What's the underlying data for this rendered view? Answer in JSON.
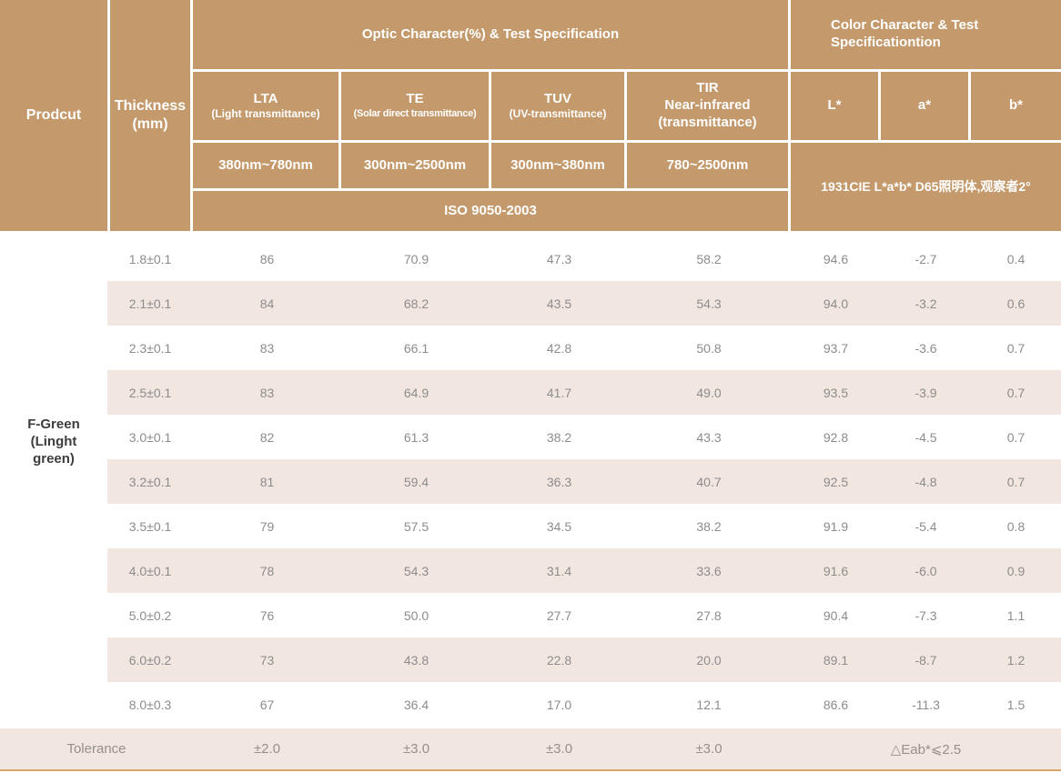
{
  "colors": {
    "header_bg": "#c49a6c",
    "header_text": "#ffffff",
    "stripe_bg": "#f2e6e0",
    "body_text": "#8c8c8c",
    "product_text": "#3d3d3d",
    "tolerance_text": "#96908a",
    "bottom_line": "#d6a66b"
  },
  "table": {
    "header": {
      "product_label": "Prodcut",
      "thickness_label": "Thickness (mm)",
      "optic_group": "Optic Character(%) & Test Specification",
      "color_group": "Color Character & Test Specificationtion",
      "optic_columns": [
        {
          "title": "LTA",
          "sub": "(Light transmittance)",
          "range": "380nm~780nm"
        },
        {
          "title": "TE",
          "sub": "(Solar direct transmittance)",
          "range": "300nm~2500nm"
        },
        {
          "title": "TUV",
          "sub": "(UV-transmittance)",
          "range": "300nm~380nm"
        },
        {
          "title": "TIR",
          "sub": "Near-infrared",
          "sub2": "(transmittance)",
          "range": "780~2500nm"
        }
      ],
      "color_columns": [
        "L*",
        "a*",
        "b*"
      ],
      "optic_standard": "ISO 9050-2003",
      "color_standard": "1931CIE L*a*b*  D65照明体,观察者2°"
    },
    "product_name": "F-Green (Linght green)",
    "rows": [
      {
        "thickness": "1.8±0.1",
        "lta": "86",
        "te": "70.9",
        "tuv": "47.3",
        "tir": "58.2",
        "L": "94.6",
        "a": "-2.7",
        "b": "0.4"
      },
      {
        "thickness": "2.1±0.1",
        "lta": "84",
        "te": "68.2",
        "tuv": "43.5",
        "tir": "54.3",
        "L": "94.0",
        "a": "-3.2",
        "b": "0.6"
      },
      {
        "thickness": "2.3±0.1",
        "lta": "83",
        "te": "66.1",
        "tuv": "42.8",
        "tir": "50.8",
        "L": "93.7",
        "a": "-3.6",
        "b": "0.7"
      },
      {
        "thickness": "2.5±0.1",
        "lta": "83",
        "te": "64.9",
        "tuv": "41.7",
        "tir": "49.0",
        "L": "93.5",
        "a": "-3.9",
        "b": "0.7"
      },
      {
        "thickness": "3.0±0.1",
        "lta": "82",
        "te": "61.3",
        "tuv": "38.2",
        "tir": "43.3",
        "L": "92.8",
        "a": "-4.5",
        "b": "0.7"
      },
      {
        "thickness": "3.2±0.1",
        "lta": "81",
        "te": "59.4",
        "tuv": "36.3",
        "tir": "40.7",
        "L": "92.5",
        "a": "-4.8",
        "b": "0.7"
      },
      {
        "thickness": "3.5±0.1",
        "lta": "79",
        "te": "57.5",
        "tuv": "34.5",
        "tir": "38.2",
        "L": "91.9",
        "a": "-5.4",
        "b": "0.8"
      },
      {
        "thickness": "4.0±0.1",
        "lta": "78",
        "te": "54.3",
        "tuv": "31.4",
        "tir": "33.6",
        "L": "91.6",
        "a": "-6.0",
        "b": "0.9"
      },
      {
        "thickness": "5.0±0.2",
        "lta": "76",
        "te": "50.0",
        "tuv": "27.7",
        "tir": "27.8",
        "L": "90.4",
        "a": "-7.3",
        "b": "1.1"
      },
      {
        "thickness": "6.0±0.2",
        "lta": "73",
        "te": "43.8",
        "tuv": "22.8",
        "tir": "20.0",
        "L": "89.1",
        "a": "-8.7",
        "b": "1.2"
      },
      {
        "thickness": "8.0±0.3",
        "lta": "67",
        "te": "36.4",
        "tuv": "17.0",
        "tir": "12.1",
        "L": "86.6",
        "a": "-11.3",
        "b": "1.5"
      }
    ],
    "tolerance": {
      "label": "Tolerance",
      "lta": "±2.0",
      "te": "±3.0",
      "tuv": "±3.0",
      "tir": "±3.0",
      "color_delta": "△Eab*⩽2.5"
    }
  },
  "chart_data": {
    "type": "table",
    "product": "F-Green (Linght green)",
    "columns": [
      "Thickness (mm)",
      "LTA (Light transmittance) 380nm~780nm",
      "TE (Solar direct transmittance) 300nm~2500nm",
      "TUV (UV-transmittance) 300nm~380nm",
      "TIR Near-infrared (transmittance) 780~2500nm",
      "L*",
      "a*",
      "b*"
    ],
    "group_headers": [
      "Optic Character(%) & Test Specification",
      "Color Character & Test Specificationtion"
    ],
    "optic_test_standard": "ISO 9050-2003",
    "color_test_standard": "1931CIE L*a*b*  D65照明体,观察者2°",
    "rows": [
      [
        "1.8±0.1",
        86,
        70.9,
        47.3,
        58.2,
        94.6,
        -2.7,
        0.4
      ],
      [
        "2.1±0.1",
        84,
        68.2,
        43.5,
        54.3,
        94.0,
        -3.2,
        0.6
      ],
      [
        "2.3±0.1",
        83,
        66.1,
        42.8,
        50.8,
        93.7,
        -3.6,
        0.7
      ],
      [
        "2.5±0.1",
        83,
        64.9,
        41.7,
        49.0,
        93.5,
        -3.9,
        0.7
      ],
      [
        "3.0±0.1",
        82,
        61.3,
        38.2,
        43.3,
        92.8,
        -4.5,
        0.7
      ],
      [
        "3.2±0.1",
        81,
        59.4,
        36.3,
        40.7,
        92.5,
        -4.8,
        0.7
      ],
      [
        "3.5±0.1",
        79,
        57.5,
        34.5,
        38.2,
        91.9,
        -5.4,
        0.8
      ],
      [
        "4.0±0.1",
        78,
        54.3,
        31.4,
        33.6,
        91.6,
        -6.0,
        0.9
      ],
      [
        "5.0±0.2",
        76,
        50.0,
        27.7,
        27.8,
        90.4,
        -7.3,
        1.1
      ],
      [
        "6.0±0.2",
        73,
        43.8,
        22.8,
        20.0,
        89.1,
        -8.7,
        1.2
      ],
      [
        "8.0±0.3",
        67,
        36.4,
        17.0,
        12.1,
        86.6,
        -11.3,
        1.5
      ]
    ],
    "tolerance_row": [
      "Tolerance",
      "±2.0",
      "±3.0",
      "±3.0",
      "±3.0",
      "△Eab*⩽2.5"
    ]
  }
}
